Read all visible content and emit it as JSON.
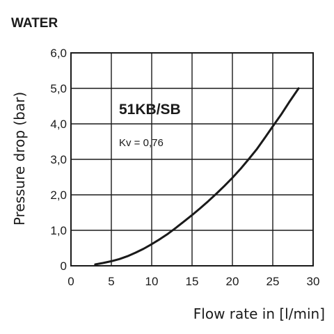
{
  "chart_data": {
    "type": "line",
    "title": "WATER",
    "xlabel": "Flow rate in [l/min]",
    "ylabel": "Pressure drop (bar)",
    "xlim": [
      0,
      30
    ],
    "ylim": [
      0,
      6
    ],
    "xticks": [
      0,
      5,
      10,
      15,
      20,
      25,
      30
    ],
    "xtick_labels": [
      "0",
      "5",
      "10",
      "15",
      "20",
      "25",
      "30"
    ],
    "yticks": [
      0,
      1,
      2,
      3,
      4,
      5,
      6
    ],
    "ytick_labels": [
      "0",
      "1,0",
      "2,0",
      "3,0",
      "4,0",
      "5,0",
      "6,0"
    ],
    "grid": true,
    "series": [
      {
        "name": "51KB/SB",
        "color": "#1a1a1a",
        "x": [
          3,
          4,
          5,
          6,
          7,
          8,
          9,
          10,
          11,
          12,
          13,
          14,
          15,
          16,
          17,
          18,
          19,
          20,
          21,
          22,
          23,
          24,
          25,
          26,
          27,
          28.2
        ],
        "y": [
          0.04,
          0.08,
          0.13,
          0.19,
          0.27,
          0.37,
          0.48,
          0.61,
          0.75,
          0.9,
          1.07,
          1.25,
          1.43,
          1.62,
          1.82,
          2.03,
          2.25,
          2.48,
          2.73,
          3.0,
          3.28,
          3.6,
          3.93,
          4.25,
          4.6,
          5.0
        ]
      }
    ],
    "annotations": [
      "Kv = 0,76"
    ]
  }
}
